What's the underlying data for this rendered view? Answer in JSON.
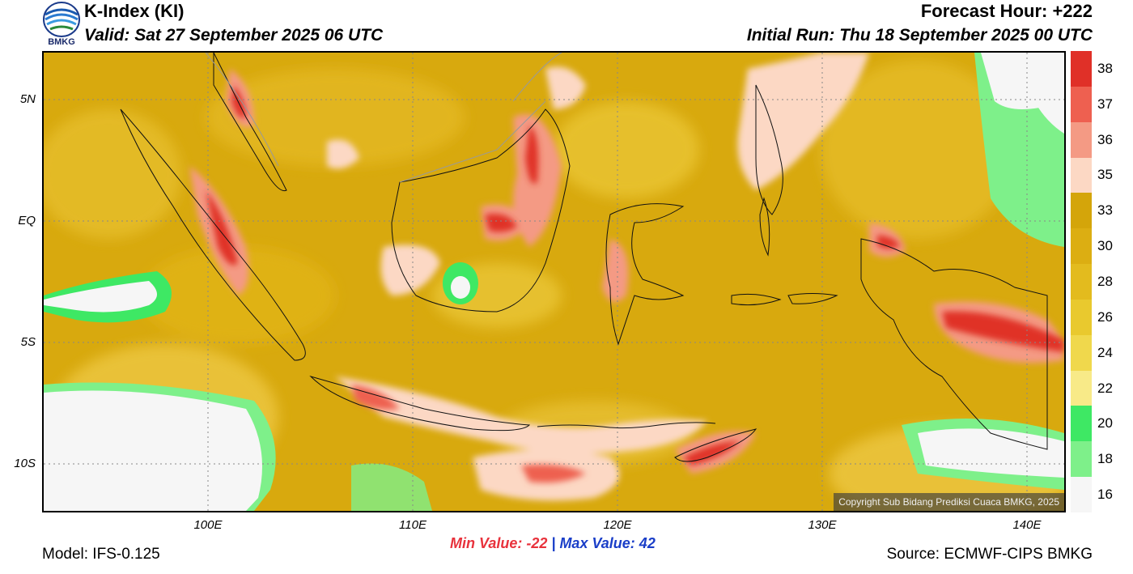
{
  "header": {
    "title": "K-Index (KI)",
    "valid": "Valid: Sat 27 September 2025 06 UTC",
    "forecast_hour": "Forecast Hour: +222",
    "initial_run": "Initial Run: Thu 18 September 2025 00 UTC",
    "logo_text": "BMKG"
  },
  "map": {
    "lat_labels": [
      "5N",
      "EQ",
      "5S",
      "10S"
    ],
    "lon_labels": [
      "100E",
      "110E",
      "120E",
      "130E",
      "140E"
    ],
    "copyright": "Copyright Sub Bidang Prediksi Cuaca BMKG, 2025"
  },
  "colorbar": {
    "labels": [
      "38",
      "37",
      "36",
      "35",
      "33",
      "30",
      "28",
      "26",
      "24",
      "22",
      "20",
      "18",
      "16"
    ],
    "colors": [
      "#e03028",
      "#ee6050",
      "#f49a84",
      "#fcd8c4",
      "#d4a50a",
      "#dcae12",
      "#e3bb1e",
      "#e9c92e",
      "#f0d84c",
      "#f8ea88",
      "#3ee864",
      "#7ef08a",
      "#f6f6f6"
    ]
  },
  "footer": {
    "min_label": "Min Value: -22",
    "separator": "|",
    "max_label": "Max Value:  42",
    "model": "Model: IFS-0.125",
    "source": "Source: ECMWF-CIPS BMKG"
  }
}
